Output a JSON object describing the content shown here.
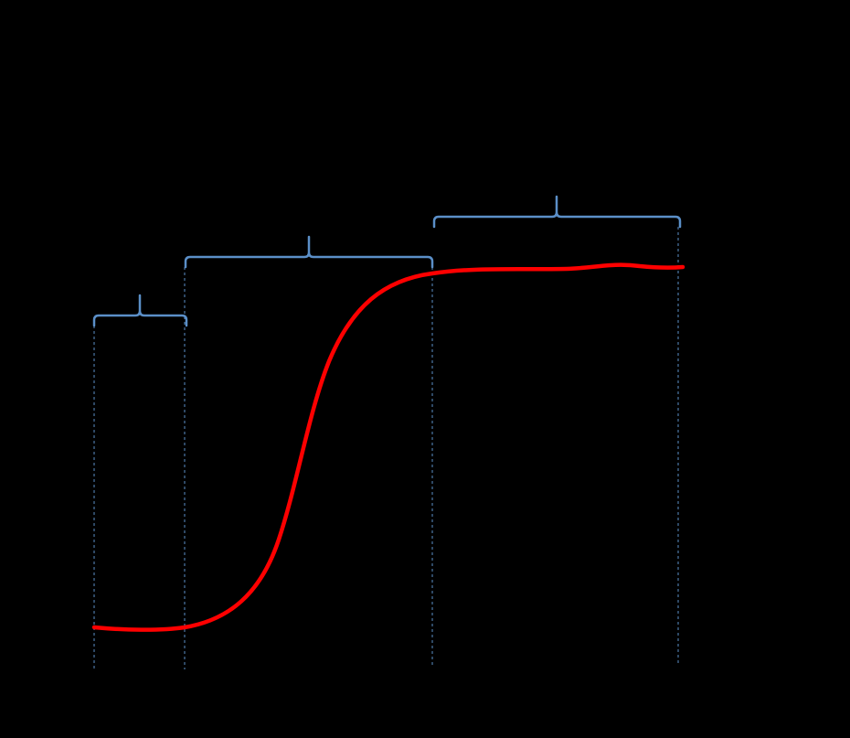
{
  "diagram": {
    "background_color": "#000000",
    "curve_color": "#ff0000",
    "bracket_color": "#5b8fc8",
    "divider_color": "#5b8fc8",
    "curve_shape": "sigmoid",
    "phase_count": 3,
    "labels": []
  }
}
